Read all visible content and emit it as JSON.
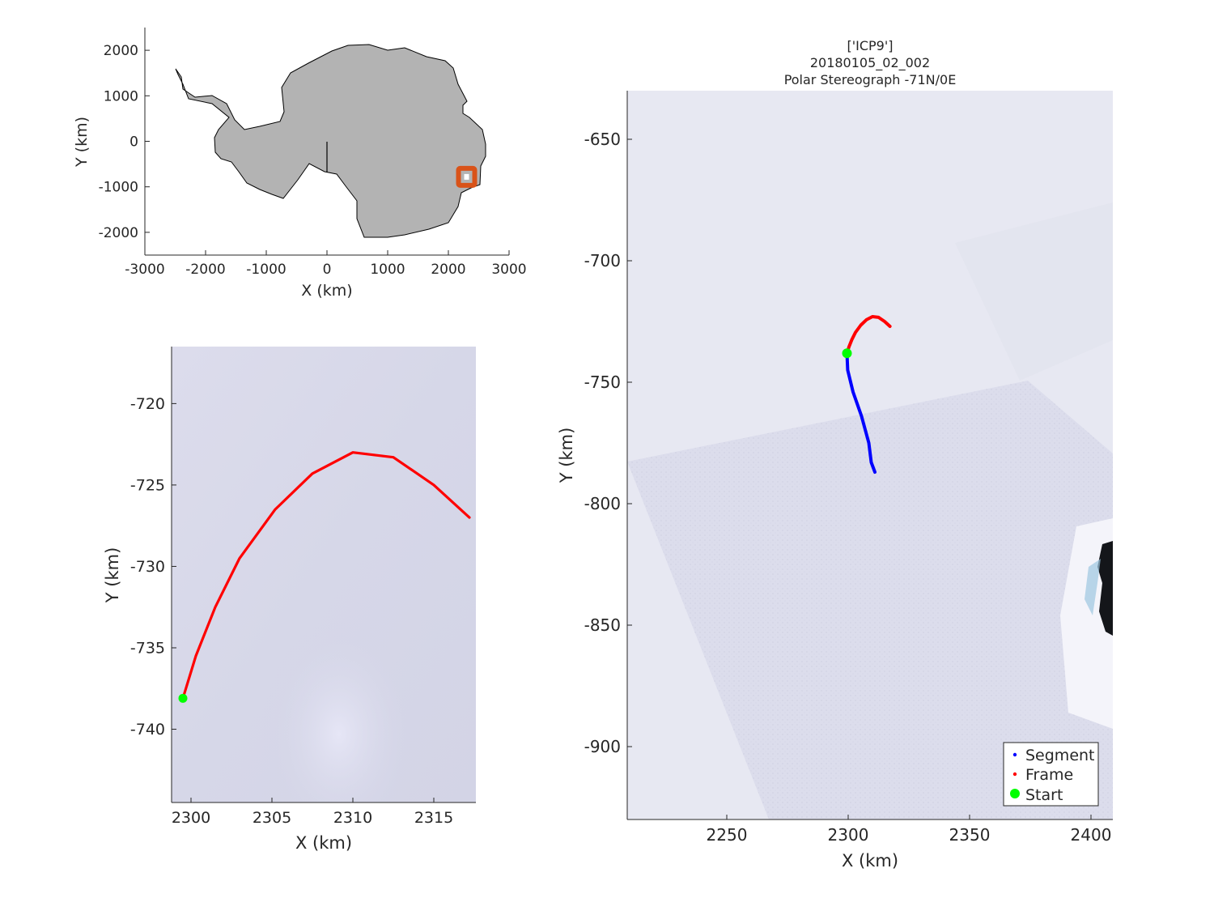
{
  "figure": {
    "title_lines": [
      "['ICP9']",
      "20180105_02_002",
      "Polar Stereograph -71N/0E"
    ]
  },
  "overview": {
    "xlabel": "X (km)",
    "ylabel": "Y (km)",
    "xticks": [
      -3000,
      -2000,
      -1000,
      0,
      1000,
      2000,
      3000
    ],
    "yticks": [
      2000,
      1000,
      0,
      -1000,
      -2000
    ],
    "xlim": [
      -3000,
      3000
    ],
    "ylim": [
      -2500,
      2500
    ],
    "land_color": "#b3b3b3",
    "marker_color": "#d95319",
    "marker_center": [
      2300,
      -790
    ]
  },
  "zoom": {
    "xlabel": "X (km)",
    "ylabel": "Y (km)",
    "xticks": [
      2300,
      2305,
      2310,
      2315
    ],
    "yticks": [
      -720,
      -725,
      -730,
      -735,
      -740
    ],
    "xlim": [
      2298.8,
      2317.6
    ],
    "ylim": [
      -744.5,
      -716.5
    ],
    "frame_color": "#ff0000",
    "start_color": "#00ff00",
    "frame_path": [
      [
        2299.5,
        -738.1
      ],
      [
        2300.3,
        -735.5
      ],
      [
        2301.5,
        -732.5
      ],
      [
        2303,
        -729.5
      ],
      [
        2305.2,
        -726.5
      ],
      [
        2307.5,
        -724.3
      ],
      [
        2310,
        -723
      ],
      [
        2312.5,
        -723.3
      ],
      [
        2315,
        -725
      ],
      [
        2317.2,
        -727
      ]
    ],
    "start_point": [
      2299.5,
      -738.1
    ]
  },
  "main": {
    "xlabel": "X (km)",
    "ylabel": "Y (km)",
    "xticks": [
      2250,
      2300,
      2350,
      2400
    ],
    "yticks": [
      -650,
      -700,
      -750,
      -800,
      -850,
      -900
    ],
    "xlim": [
      2209,
      2409
    ],
    "ylim": [
      -930,
      -630
    ],
    "segment_color": "#0000ff",
    "frame_color": "#ff0000",
    "start_color": "#00ff00",
    "segment_path": [
      [
        2299.5,
        -738.1
      ],
      [
        2299.8,
        -745
      ],
      [
        2302,
        -754
      ],
      [
        2305.5,
        -764
      ],
      [
        2308.5,
        -775
      ],
      [
        2309.5,
        -783
      ],
      [
        2311,
        -787
      ]
    ],
    "frame_path": [
      [
        2299.5,
        -738.1
      ],
      [
        2300.3,
        -735.5
      ],
      [
        2301.5,
        -732.5
      ],
      [
        2303,
        -729.5
      ],
      [
        2305.2,
        -726.5
      ],
      [
        2307.5,
        -724.3
      ],
      [
        2310,
        -723
      ],
      [
        2312.5,
        -723.3
      ],
      [
        2315,
        -725
      ],
      [
        2317.2,
        -727
      ]
    ],
    "start_point": [
      2299.5,
      -738.1
    ],
    "legend": {
      "segment_label": "Segment",
      "frame_label": "Frame",
      "start_label": "Start",
      "placement": "bottom-right"
    }
  }
}
